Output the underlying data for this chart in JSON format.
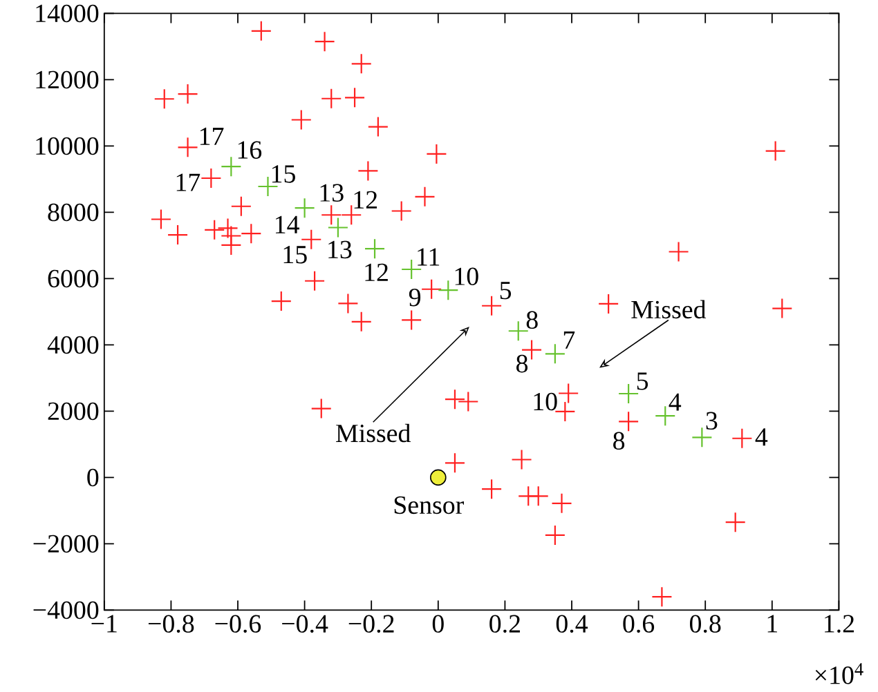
{
  "chart_data": {
    "type": "scatter",
    "xlim": [
      -1,
      1.2
    ],
    "ylim": [
      -4000,
      14000
    ],
    "xticks": [
      {
        "value": -1,
        "label": "−1"
      },
      {
        "value": -0.8,
        "label": "−0.8"
      },
      {
        "value": -0.6,
        "label": "−0.6"
      },
      {
        "value": -0.4,
        "label": "−0.4"
      },
      {
        "value": -0.2,
        "label": "−0.2"
      },
      0,
      0.2,
      0.4,
      0.6,
      0.8,
      1,
      1.2
    ],
    "yticks": [
      {
        "value": -4000,
        "label": "−4000"
      },
      {
        "value": -2000,
        "label": "−2000"
      },
      0,
      2000,
      4000,
      6000,
      8000,
      10000,
      12000,
      14000
    ],
    "series": [
      {
        "marker": "cross",
        "color": "#ff2020",
        "x": [
          -0.53,
          -0.34,
          -0.23,
          -0.82,
          -0.75,
          -0.32,
          -0.25,
          -0.41,
          -0.18,
          -0.75,
          -0.005,
          -0.68,
          -0.21,
          -0.59,
          -0.04,
          -0.11,
          -0.83,
          -0.78,
          -0.32,
          -0.26,
          -0.67,
          -0.63,
          -0.62,
          -0.62,
          -0.56,
          -0.38,
          -0.37,
          -0.47,
          -0.27,
          -0.02,
          -0.23,
          -0.08,
          0.16,
          0.28,
          0.51,
          0.72,
          1.01,
          1.03,
          0.39,
          0.38,
          0.57,
          0.91,
          0.25,
          0.16,
          0.27,
          0.3,
          0.37,
          0.35,
          0.89,
          0.67,
          0.09,
          0.05,
          0.05,
          -0.35
        ],
        "values": [
          13470,
          13150,
          12480,
          11420,
          11570,
          11430,
          11460,
          10790,
          10580,
          9960,
          9760,
          9030,
          9250,
          8180,
          8470,
          8040,
          7790,
          7320,
          7920,
          7920,
          7470,
          7520,
          7290,
          7010,
          7360,
          7180,
          5930,
          5320,
          5250,
          5680,
          4700,
          4750,
          5180,
          3850,
          5240,
          6810,
          9850,
          5100,
          2540,
          1990,
          1690,
          1180,
          540,
          -350,
          -560,
          -560,
          -780,
          -1740,
          -1350,
          -3600,
          2290,
          2360,
          440,
          2080
        ]
      },
      {
        "marker": "cross",
        "color": "#66c22e",
        "x": [
          -0.62,
          -0.51,
          -0.4,
          -0.3,
          -0.19,
          -0.08,
          0.03,
          0.24,
          0.35,
          0.57,
          0.68,
          0.79
        ],
        "values": [
          9380,
          8780,
          8130,
          7540,
          6900,
          6280,
          5650,
          4420,
          3730,
          2530,
          1860,
          1210
        ]
      },
      {
        "marker": "circle",
        "color": "#eeee3a",
        "x": [
          0
        ],
        "values": [
          0
        ]
      }
    ],
    "annotations": [
      "Missed",
      "Missed",
      {
        "text": "17",
        "x": -0.75,
        "y": 9960
      },
      {
        "text": "17",
        "x": -0.68,
        "y": 9030
      },
      {
        "text": "16",
        "x": -0.62,
        "y": 9380
      },
      {
        "text": "15",
        "x": -0.51,
        "y": 8780
      },
      {
        "text": "14",
        "x": -0.4,
        "y": 8130
      },
      {
        "text": "13",
        "x": -0.32,
        "y": 7920
      },
      {
        "text": "12",
        "x": -0.26,
        "y": 7920
      },
      {
        "text": "15",
        "x": -0.38,
        "y": 7180
      },
      {
        "text": "13",
        "x": -0.3,
        "y": 7540
      },
      {
        "text": "12",
        "x": -0.19,
        "y": 6900
      },
      {
        "text": "11",
        "x": -0.08,
        "y": 6280
      },
      {
        "text": "10",
        "x": 0.03,
        "y": 5650
      },
      {
        "text": "9",
        "x": -0.02,
        "y": 5680
      },
      {
        "text": "5",
        "x": 0.16,
        "y": 5180
      },
      {
        "text": "8",
        "x": 0.24,
        "y": 4420
      },
      {
        "text": "7",
        "x": 0.35,
        "y": 3730
      },
      {
        "text": "8",
        "x": 0.28,
        "y": 3850
      },
      {
        "text": "10",
        "x": 0.39,
        "y": 2540
      },
      {
        "text": "5",
        "x": 0.57,
        "y": 2530
      },
      {
        "text": "4",
        "x": 0.68,
        "y": 1860
      },
      {
        "text": "8",
        "x": 0.57,
        "y": 1690
      },
      {
        "text": "3",
        "x": 0.79,
        "y": 1210
      },
      {
        "text": "4",
        "x": 0.91,
        "y": 1180
      },
      {
        "text": "Sensor",
        "x": 0,
        "y": 0
      },
      "×10$^{4}$"
    ]
  }
}
